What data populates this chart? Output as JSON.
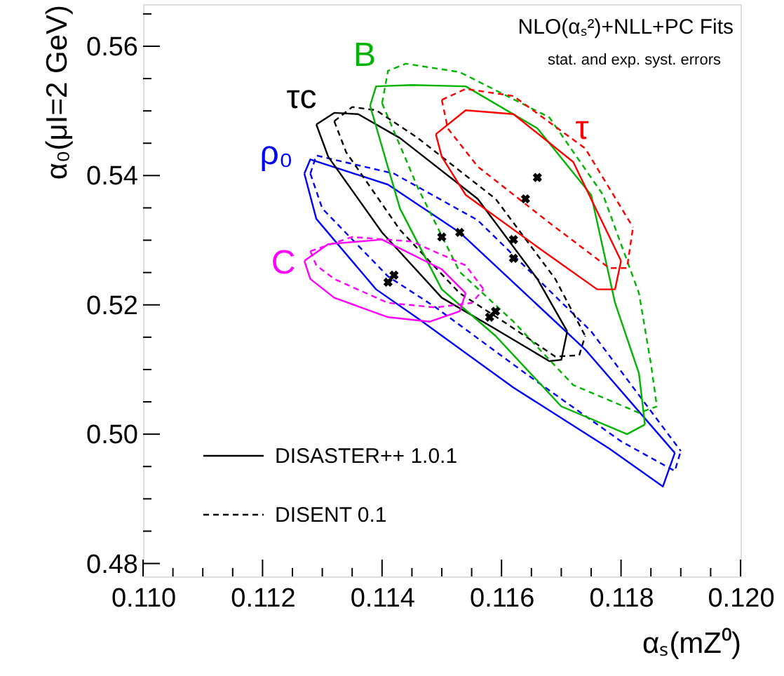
{
  "chart_data": {
    "type": "line",
    "title": "NLO(αₛ²)+NLL+PC Fits",
    "subtitle": "stat. and exp. syst. errors",
    "xlabel": "αₛ(mZ⁰)",
    "ylabel": "α₀(μI=2 GeV)",
    "xlim": [
      0.11,
      0.12
    ],
    "ylim": [
      0.478,
      0.5665
    ],
    "xticks": [
      {
        "value": 0.11,
        "label": "0.110"
      },
      {
        "value": 0.1105,
        "label": null
      },
      {
        "value": 0.111,
        "label": null
      },
      {
        "value": 0.1115,
        "label": null
      },
      {
        "value": 0.112,
        "label": "0.112"
      },
      {
        "value": 0.1125,
        "label": null
      },
      {
        "value": 0.113,
        "label": null
      },
      {
        "value": 0.1135,
        "label": null
      },
      {
        "value": 0.114,
        "label": "0.114"
      },
      {
        "value": 0.1145,
        "label": null
      },
      {
        "value": 0.115,
        "label": null
      },
      {
        "value": 0.1155,
        "label": null
      },
      {
        "value": 0.116,
        "label": "0.116"
      },
      {
        "value": 0.1165,
        "label": null
      },
      {
        "value": 0.117,
        "label": null
      },
      {
        "value": 0.1175,
        "label": null
      },
      {
        "value": 0.118,
        "label": "0.118"
      },
      {
        "value": 0.1185,
        "label": null
      },
      {
        "value": 0.119,
        "label": null
      },
      {
        "value": 0.1195,
        "label": null
      },
      {
        "value": 0.12,
        "label": "0.120"
      }
    ],
    "yticks": [
      {
        "value": 0.48,
        "label": "0.48"
      },
      {
        "value": 0.485,
        "label": null
      },
      {
        "value": 0.49,
        "label": null
      },
      {
        "value": 0.495,
        "label": null
      },
      {
        "value": 0.5,
        "label": "0.50"
      },
      {
        "value": 0.505,
        "label": null
      },
      {
        "value": 0.51,
        "label": null
      },
      {
        "value": 0.515,
        "label": null
      },
      {
        "value": 0.52,
        "label": "0.52"
      },
      {
        "value": 0.525,
        "label": null
      },
      {
        "value": 0.53,
        "label": null
      },
      {
        "value": 0.535,
        "label": null
      },
      {
        "value": 0.54,
        "label": "0.54"
      },
      {
        "value": 0.545,
        "label": null
      },
      {
        "value": 0.55,
        "label": null
      },
      {
        "value": 0.555,
        "label": null
      },
      {
        "value": 0.56,
        "label": "0.56"
      },
      {
        "value": 0.565,
        "label": null
      }
    ],
    "grid": false,
    "legend": "bottom left",
    "annotations": [
      "ρ₀",
      "τc",
      "B",
      "τ",
      "C"
    ],
    "series": [
      {
        "color": "#0000ff",
        "line_style": "solid",
        "x": [
          0.1127,
          0.1128,
          0.1141,
          0.1153,
          0.1174,
          0.1189
        ],
        "values": [
          0.5403,
          0.5425,
          0.5386,
          0.5312,
          0.5131,
          0.4971
        ]
      },
      {
        "color": "#0000ff",
        "line_style": "solid",
        "x": [
          0.1127,
          0.1129,
          0.1139,
          0.1146,
          0.1162,
          0.1178,
          0.1187,
          0.1189
        ],
        "values": [
          0.5403,
          0.5333,
          0.5224,
          0.5179,
          0.5072,
          0.4978,
          0.4919,
          0.4971
        ]
      },
      {
        "color": "#0000ff",
        "line_style": "dashed",
        "x": [
          0.1128,
          0.1129,
          0.1142,
          0.1156,
          0.1175,
          0.119
        ],
        "values": [
          0.5403,
          0.5431,
          0.5403,
          0.5331,
          0.5159,
          0.4974
        ]
      },
      {
        "color": "#0000ff",
        "line_style": "dashed",
        "x": [
          0.1128,
          0.113,
          0.1141,
          0.1149,
          0.1164,
          0.118,
          0.1189,
          0.119
        ],
        "values": [
          0.5403,
          0.5349,
          0.5244,
          0.5196,
          0.5094,
          0.4989,
          0.4943,
          0.4974
        ]
      },
      {
        "name": "DISASTER++ 1.0.1",
        "color": "#000000",
        "line_style": "solid",
        "x": [
          0.1129,
          0.1132,
          0.1136,
          0.1143,
          0.1156,
          0.1166,
          0.1171
        ],
        "values": [
          0.5479,
          0.5497,
          0.5495,
          0.5458,
          0.5364,
          0.524,
          0.5159
        ]
      },
      {
        "color": "#000000",
        "line_style": "solid",
        "x": [
          0.1129,
          0.1131,
          0.114,
          0.115,
          0.1158,
          0.1168,
          0.117,
          0.1171
        ],
        "values": [
          0.5479,
          0.5429,
          0.5312,
          0.5211,
          0.5168,
          0.5113,
          0.5115,
          0.5159
        ]
      },
      {
        "name": "DISENT 0.1",
        "color": "#000000",
        "line_style": "dashed",
        "x": [
          0.1132,
          0.1135,
          0.1139,
          0.1146,
          0.1159,
          0.1169,
          0.1174
        ],
        "values": [
          0.5484,
          0.5506,
          0.5501,
          0.5458,
          0.5364,
          0.524,
          0.5152
        ]
      },
      {
        "color": "#000000",
        "line_style": "dashed",
        "x": [
          0.1132,
          0.1134,
          0.1143,
          0.1153,
          0.1161,
          0.1169,
          0.1173,
          0.1174
        ],
        "values": [
          0.5484,
          0.5436,
          0.5316,
          0.5218,
          0.517,
          0.512,
          0.5122,
          0.5152
        ]
      },
      {
        "color": "#00b400",
        "line_style": "solid",
        "x": [
          0.1138,
          0.1139,
          0.1145,
          0.1154,
          0.1166,
          0.1175,
          0.1179,
          0.1183,
          0.1184
        ],
        "values": [
          0.5508,
          0.5538,
          0.554,
          0.5538,
          0.5473,
          0.537,
          0.5203,
          0.5094,
          0.5015
        ]
      },
      {
        "color": "#00b400",
        "line_style": "solid",
        "x": [
          0.1138,
          0.1143,
          0.115,
          0.1159,
          0.117,
          0.1181,
          0.1184
        ],
        "values": [
          0.5508,
          0.5349,
          0.5224,
          0.5152,
          0.5043,
          0.5,
          0.5015
        ]
      },
      {
        "color": "#00b400",
        "line_style": "dashed",
        "x": [
          0.114,
          0.1141,
          0.1144,
          0.1153,
          0.1168,
          0.1177,
          0.1183,
          0.1185,
          0.1186
        ],
        "values": [
          0.5512,
          0.5562,
          0.5573,
          0.556,
          0.549,
          0.537,
          0.5218,
          0.5109,
          0.5043
        ]
      },
      {
        "color": "#00b400",
        "line_style": "dashed",
        "x": [
          0.114,
          0.1146,
          0.1153,
          0.1162,
          0.1172,
          0.1183,
          0.1186
        ],
        "values": [
          0.5512,
          0.5381,
          0.5251,
          0.5174,
          0.5076,
          0.5033,
          0.5043
        ]
      },
      {
        "color": "#ff0000",
        "line_style": "solid",
        "x": [
          0.1149,
          0.1154,
          0.1162,
          0.1172,
          0.118
        ],
        "values": [
          0.5464,
          0.5501,
          0.5495,
          0.5421,
          0.5268
        ]
      },
      {
        "color": "#ff0000",
        "line_style": "solid",
        "x": [
          0.1149,
          0.115,
          0.1154,
          0.1167,
          0.1176,
          0.1179,
          0.118
        ],
        "values": [
          0.5464,
          0.5429,
          0.537,
          0.5283,
          0.5224,
          0.5224,
          0.5268
        ]
      },
      {
        "color": "#ff0000",
        "line_style": "dashed",
        "x": [
          0.115,
          0.1154,
          0.1162,
          0.1174,
          0.1182
        ],
        "values": [
          0.5517,
          0.5534,
          0.5523,
          0.5442,
          0.532
        ]
      },
      {
        "color": "#ff0000",
        "line_style": "dashed",
        "x": [
          0.115,
          0.1151,
          0.1156,
          0.1168,
          0.1178,
          0.1181,
          0.1182
        ],
        "values": [
          0.5517,
          0.5473,
          0.5414,
          0.5327,
          0.5257,
          0.5257,
          0.532
        ]
      },
      {
        "color": "#ff00ff",
        "line_style": "solid",
        "x": [
          0.1127,
          0.1131,
          0.114,
          0.115,
          0.1154
        ],
        "values": [
          0.5268,
          0.5294,
          0.5301,
          0.5255,
          0.5218
        ]
      },
      {
        "color": "#ff00ff",
        "line_style": "solid",
        "x": [
          0.1127,
          0.1128,
          0.1132,
          0.1141,
          0.1148,
          0.1153,
          0.1154
        ],
        "values": [
          0.5268,
          0.524,
          0.5211,
          0.5181,
          0.5174,
          0.519,
          0.5218
        ]
      },
      {
        "color": "#ff00ff",
        "line_style": "dashed",
        "x": [
          0.1128,
          0.1135,
          0.1145,
          0.1154,
          0.1157
        ],
        "values": [
          0.5283,
          0.5305,
          0.5298,
          0.5261,
          0.5224
        ]
      },
      {
        "color": "#ff00ff",
        "line_style": "dashed",
        "x": [
          0.1128,
          0.1129,
          0.1132,
          0.1141,
          0.1149,
          0.1155,
          0.1157
        ],
        "values": [
          0.5283,
          0.5261,
          0.524,
          0.5203,
          0.5196,
          0.5203,
          0.5224
        ]
      },
      {
        "type": "scatter",
        "marker": "cross",
        "color": "#000000",
        "x": [
          0.1141,
          0.1142,
          0.115,
          0.1153,
          0.1162,
          0.1162,
          0.1164,
          0.1166,
          0.1158,
          0.1159
        ],
        "values": [
          0.5235,
          0.5246,
          0.5305,
          0.5312,
          0.5272,
          0.5301,
          0.5364,
          0.5397,
          0.5181,
          0.519
        ]
      }
    ]
  }
}
